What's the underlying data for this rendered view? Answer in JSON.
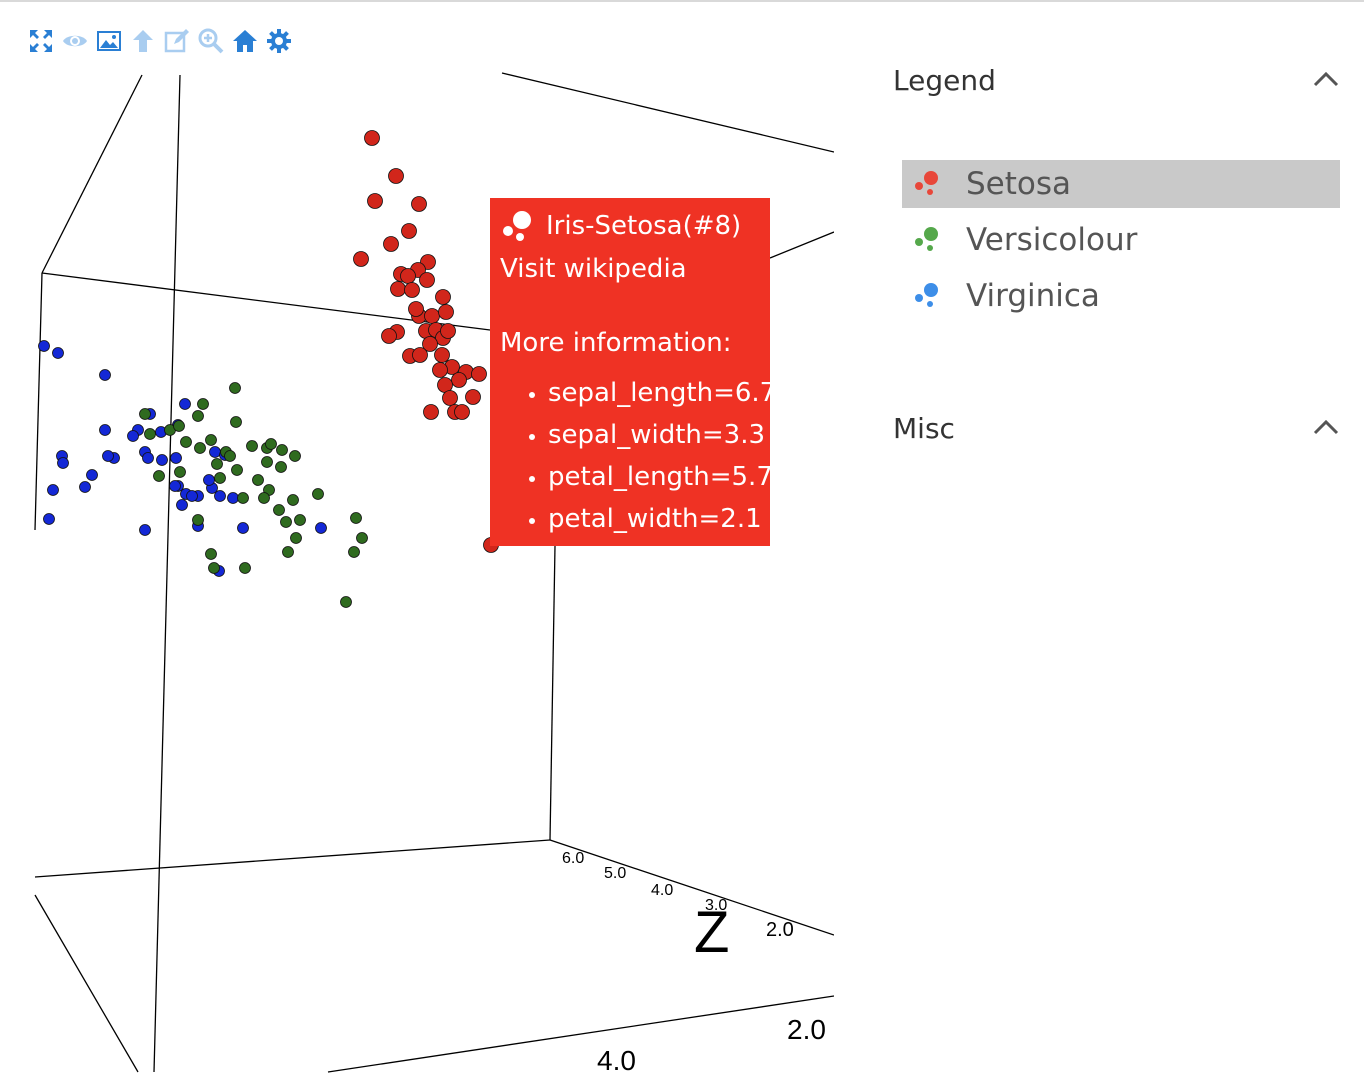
{
  "toolbar": {
    "icons": [
      "fullscreen-icon",
      "eye-icon",
      "image-icon",
      "arrow-up-icon",
      "edit-icon",
      "zoom-icon",
      "home-icon",
      "gear-icon"
    ],
    "color": "#2a7fd4",
    "disabled_color": "#a9cdf0"
  },
  "tooltip": {
    "title": "Iris-Setosa(#8)",
    "link": "Visit wikipedia",
    "more": "More information:",
    "items": [
      "sepal_length=6.7",
      "sepal_width=3.3",
      "petal_length=5.7",
      "petal_width=2.1"
    ],
    "background": "#ef3224"
  },
  "legend": {
    "title": "Legend",
    "items": [
      {
        "label": "Setosa",
        "color": "#e8473a",
        "selected": true
      },
      {
        "label": "Versicolour",
        "color": "#55a84b",
        "selected": false
      },
      {
        "label": "Virginica",
        "color": "#3d8ee8",
        "selected": false
      }
    ]
  },
  "misc": {
    "title": "Misc"
  },
  "chart_data": {
    "type": "scatter",
    "projection": "3d",
    "axis_labels": {
      "z": "Z"
    },
    "z_ticks": [
      "6.0",
      "5.0",
      "4.0",
      "3.0",
      "2.0"
    ],
    "bottom_ticks": [
      "4.0",
      "2.0"
    ],
    "series": [
      {
        "name": "Setosa",
        "color": "#d1261b"
      },
      {
        "name": "Versicolour",
        "color": "#2f6b1f"
      },
      {
        "name": "Virginica",
        "color": "#1428d6"
      }
    ]
  }
}
